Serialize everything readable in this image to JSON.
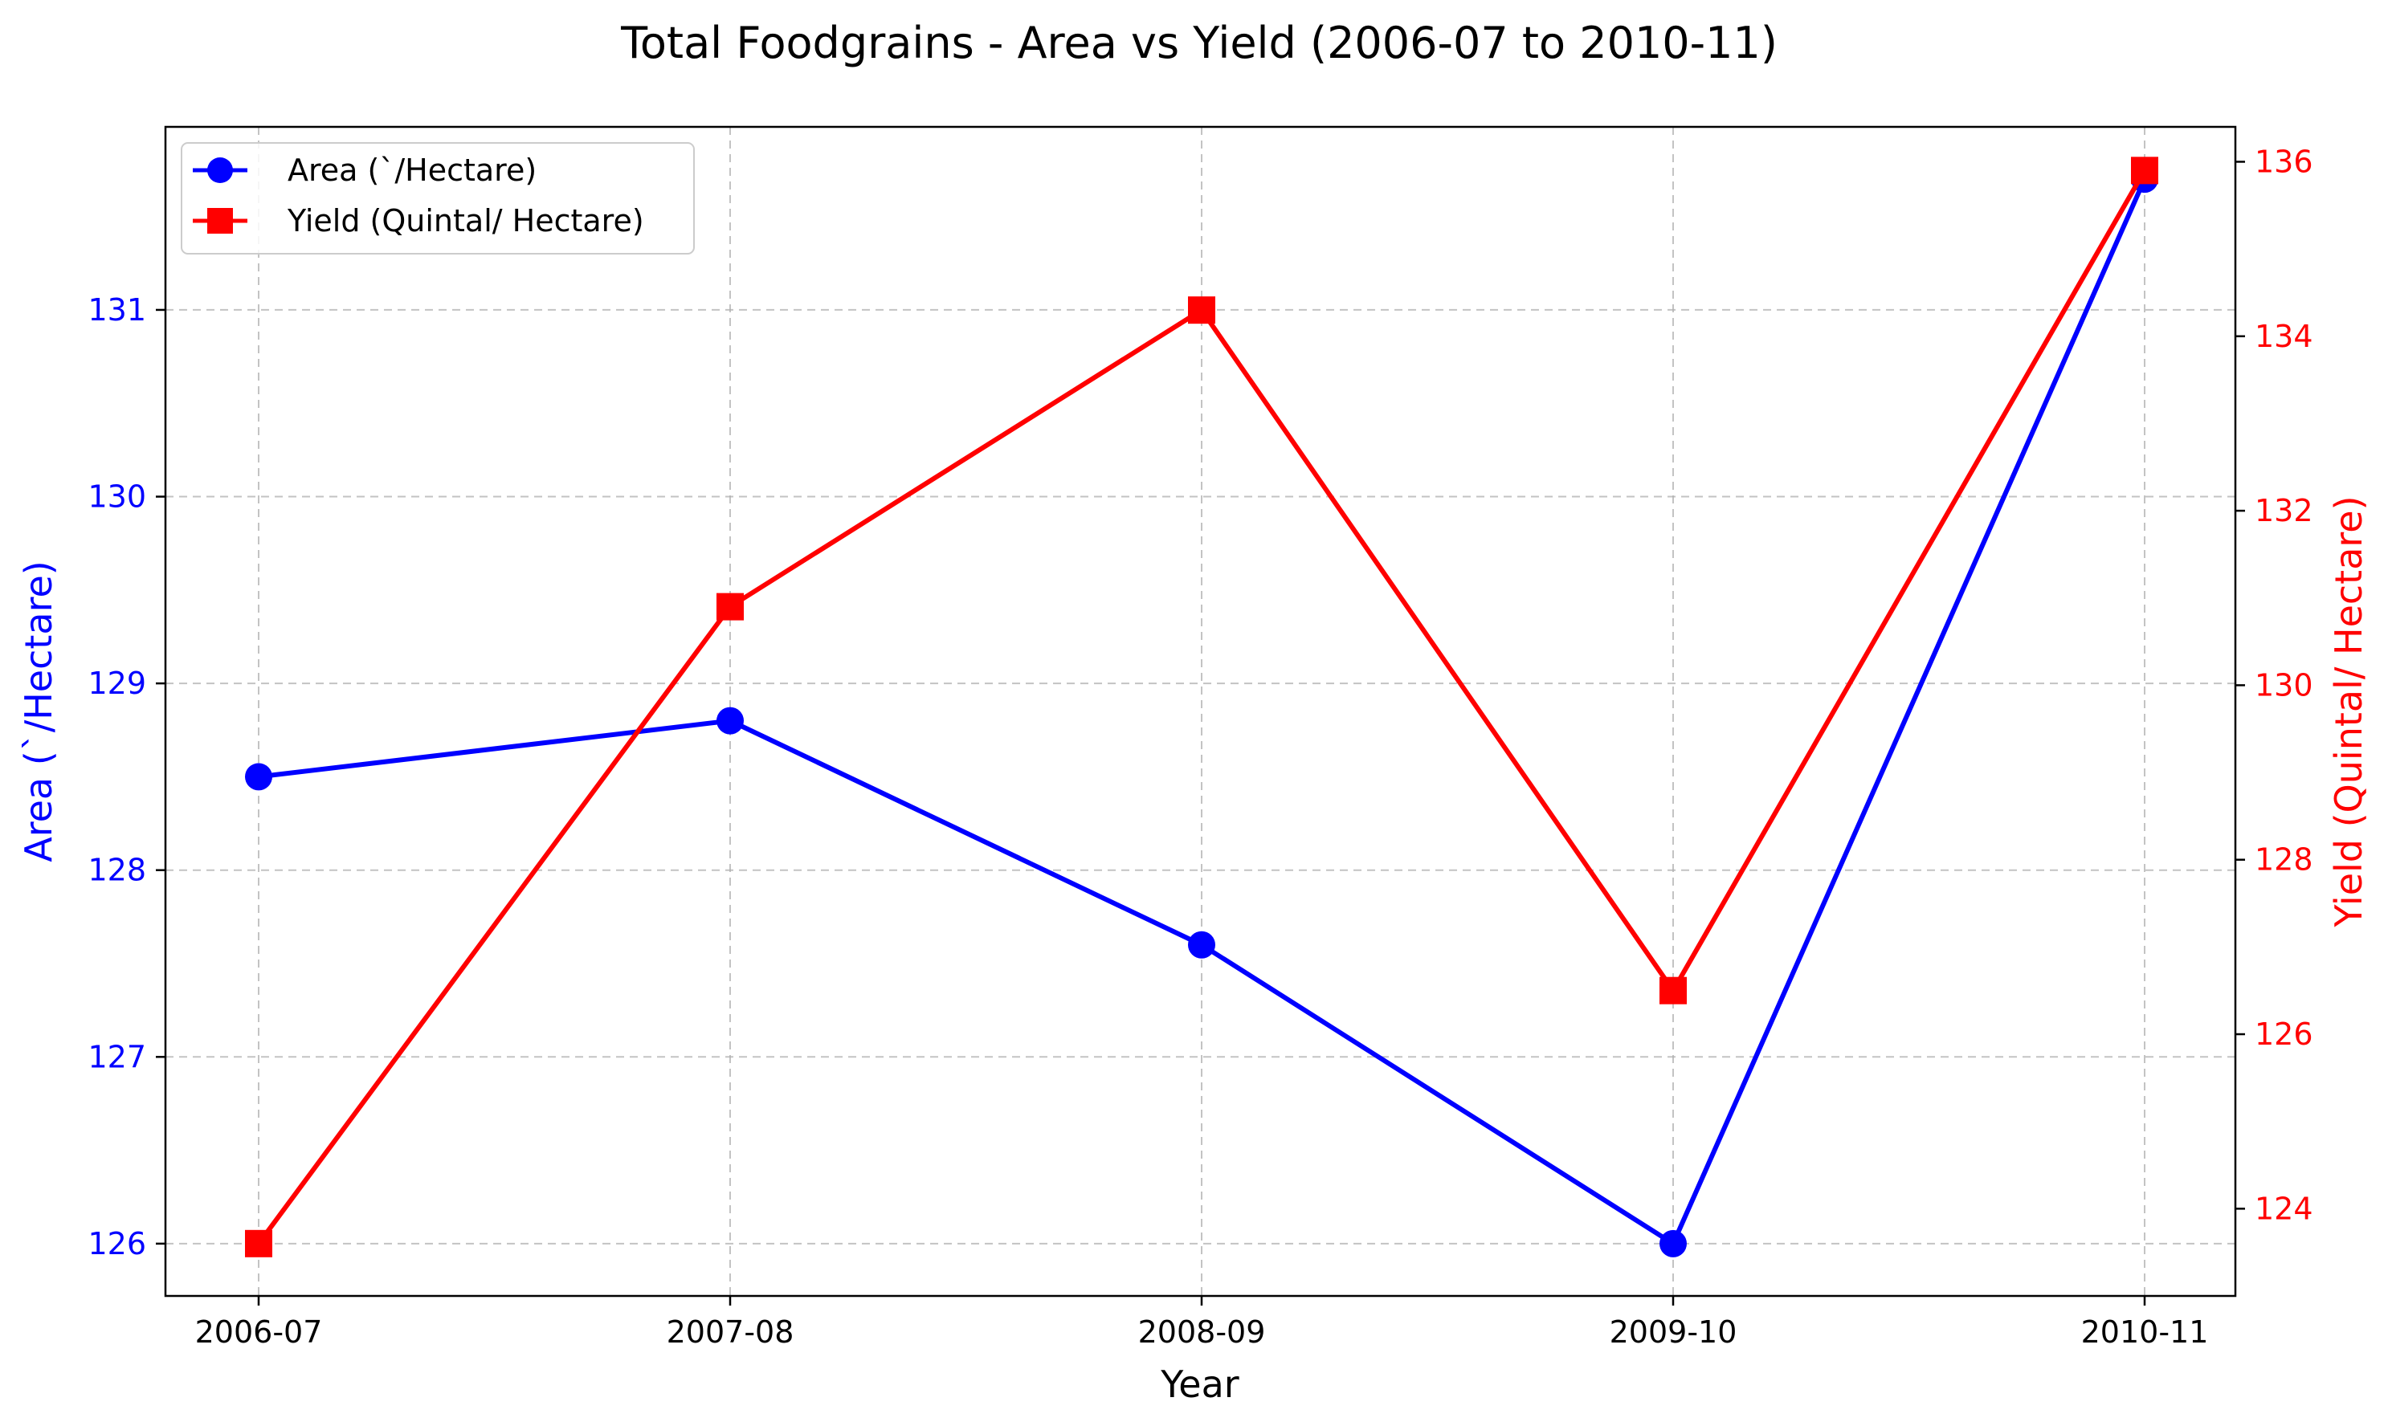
{
  "chart_data": {
    "type": "line",
    "title": "Total Foodgrains - Area vs Yield (2006-07 to 2010-11)",
    "xlabel": "Year",
    "ylabel_left": "Area (`/Hectare)",
    "ylabel_right": "Yield (Quintal/ Hectare)",
    "categories": [
      "2006-07",
      "2007-08",
      "2008-09",
      "2009-10",
      "2010-11"
    ],
    "ylim_left": [
      125.72,
      131.98
    ],
    "ylim_right": [
      123.0,
      136.4
    ],
    "yticks_left": [
      126,
      127,
      128,
      129,
      130,
      131
    ],
    "yticks_right": [
      124,
      126,
      128,
      130,
      132,
      134,
      136
    ],
    "grid": true,
    "legend_position": "upper-left",
    "series": [
      {
        "name": "Area (`/Hectare)",
        "axis": "left",
        "color": "#0000ff",
        "marker": "circle",
        "values": [
          128.5,
          128.8,
          127.6,
          126.0,
          131.7
        ]
      },
      {
        "name": "Yield (Quintal/ Hectare)",
        "axis": "right",
        "color": "#ff0000",
        "marker": "square",
        "values": [
          123.6,
          130.9,
          134.3,
          126.5,
          135.9
        ]
      }
    ]
  }
}
